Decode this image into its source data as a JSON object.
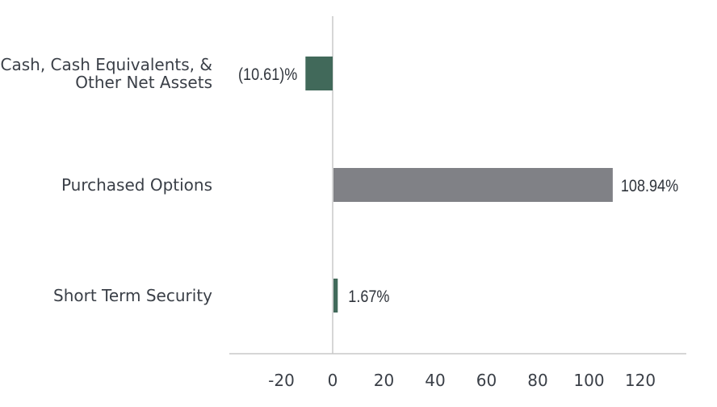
{
  "chart_data": {
    "type": "bar",
    "orientation": "horizontal",
    "categories": [
      [
        "Cash, Cash Equivalents, &",
        "Other Net Assets"
      ],
      [
        "Purchased Options"
      ],
      [
        "Short Term Security"
      ]
    ],
    "values": [
      -10.61,
      108.94,
      1.67
    ],
    "data_labels": [
      "(10.61)%",
      "108.94%",
      "1.67%"
    ],
    "bar_colors": [
      "#41695a",
      "#808186",
      "#41695a"
    ],
    "x_ticks": [
      "-20",
      "0",
      "20",
      "40",
      "60",
      "80",
      "100",
      "120"
    ],
    "xlim": [
      -40,
      138
    ],
    "grid": false,
    "legend": "none",
    "title": "",
    "xlabel": "",
    "ylabel": ""
  },
  "colors": {
    "axis": "#c8c8c8",
    "text": "#3a3f47"
  }
}
